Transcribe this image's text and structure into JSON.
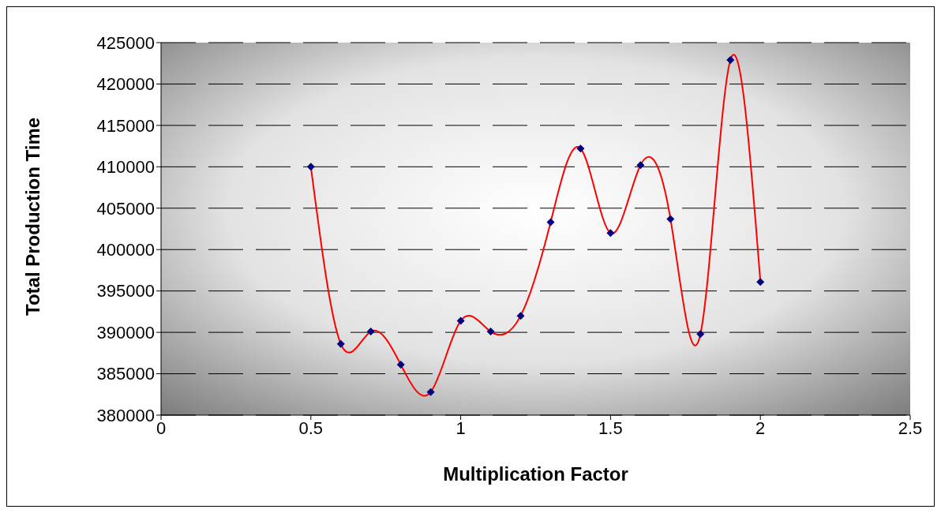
{
  "chart_data": {
    "type": "line",
    "xlabel": "Multiplication Factor",
    "ylabel": "Total Production Time",
    "x": [
      0.5,
      0.6,
      0.7,
      0.8,
      0.9,
      1.0,
      1.1,
      1.2,
      1.3,
      1.4,
      1.5,
      1.6,
      1.7,
      1.8,
      1.9,
      2.0
    ],
    "series": [
      {
        "color": "#ff0000",
        "colors": [
          "#000080",
          "#000080",
          "#000080",
          "#000080",
          "#000080",
          "#000080",
          "#000080",
          "#000080",
          "#000080",
          "#000080",
          "#000080",
          "#000080",
          "#000080",
          "#000080",
          "#000080",
          "#000080"
        ],
        "values": [
          410000,
          388600,
          390100,
          386100,
          382800,
          391400,
          390100,
          392000,
          403300,
          412200,
          402000,
          410200,
          403700,
          389800,
          422900,
          396100
        ]
      }
    ],
    "marker": "diamond",
    "xlim": [
      0,
      2.5
    ],
    "xticks": [
      0,
      0.5,
      1,
      1.5,
      2,
      2.5
    ],
    "ylim": [
      380000,
      425000
    ],
    "yticks": [
      380000,
      385000,
      390000,
      395000,
      400000,
      405000,
      410000,
      415000,
      420000,
      425000
    ],
    "grid": "y",
    "legend": false
  }
}
